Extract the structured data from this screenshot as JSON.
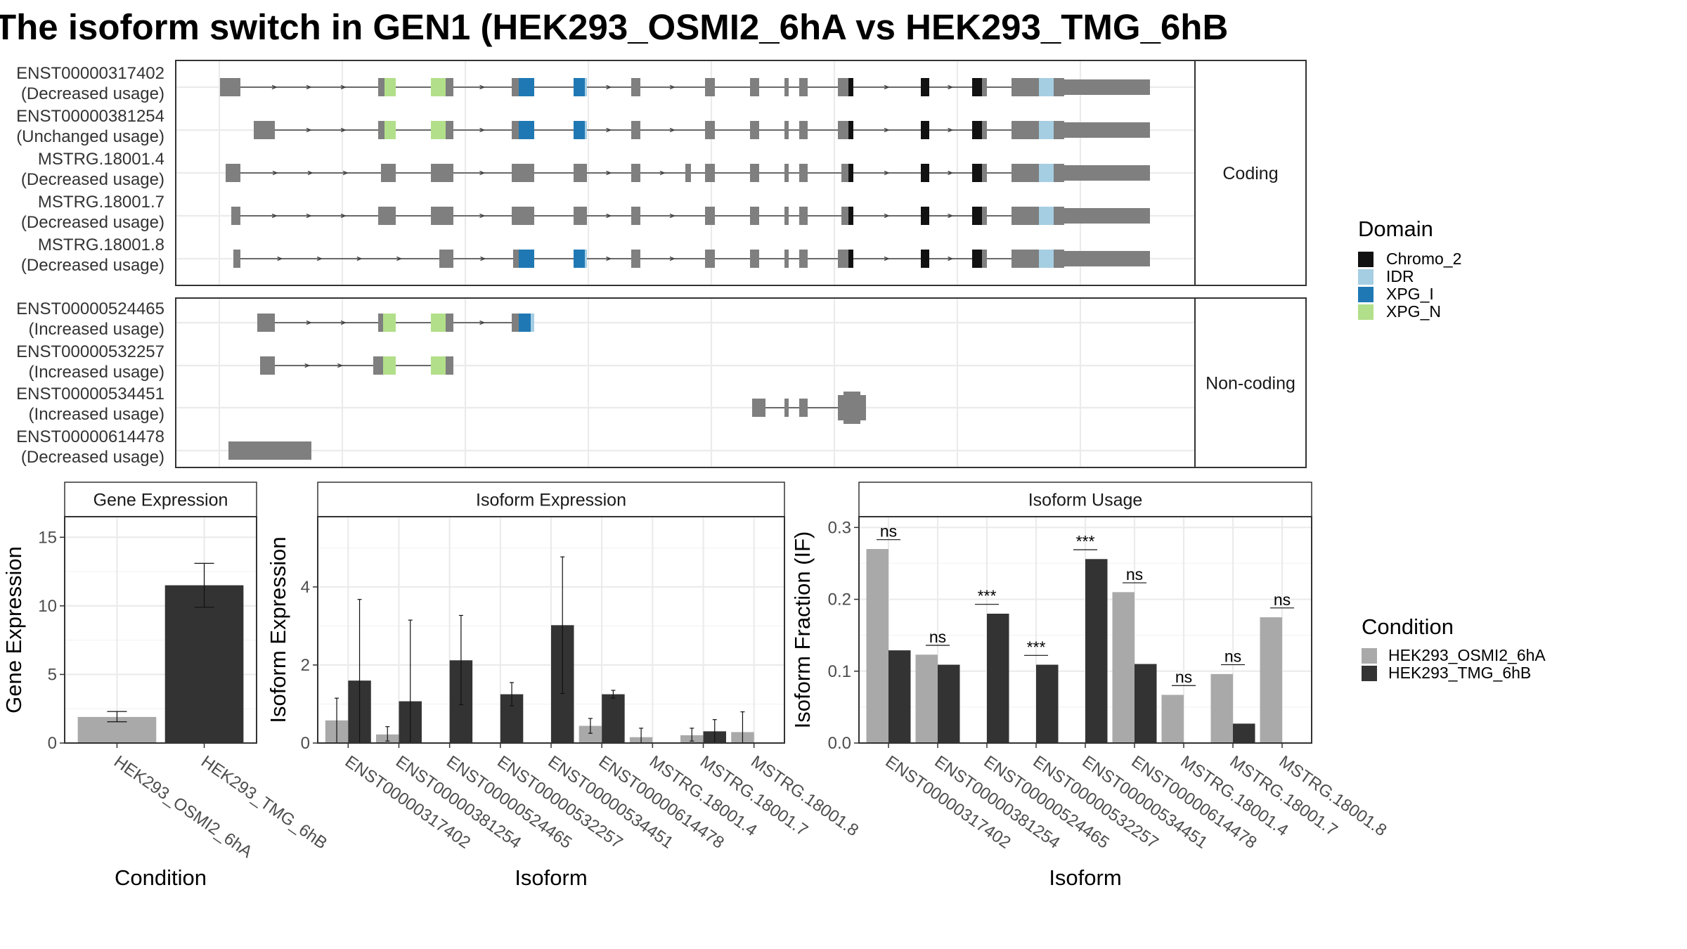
{
  "title": "The isoform switch in GEN1 (HEK293_OSMI2_6hA vs HEK293_TMG_6hB",
  "colors": {
    "exon": "#7f7f7f",
    "intron": "#3f3f3f",
    "Chromo_2": "#111111",
    "IDR": "#a6cee3",
    "XPG_I": "#1f78b4",
    "XPG_N": "#b2df8a",
    "cond_a": "#a9a9a9",
    "cond_b": "#333333"
  },
  "transcript_panels": [
    {
      "strip": "Coding",
      "isoforms": [
        {
          "id": "ENST00000317402",
          "usage": "(Decreased usage)"
        },
        {
          "id": "ENST00000381254",
          "usage": "(Unchanged usage)"
        },
        {
          "id": "MSTRG.18001.4",
          "usage": "(Decreased usage)"
        },
        {
          "id": "MSTRG.18001.7",
          "usage": "(Decreased usage)"
        },
        {
          "id": "MSTRG.18001.8",
          "usage": "(Decreased usage)"
        }
      ]
    },
    {
      "strip": "Non-coding",
      "isoforms": [
        {
          "id": "ENST00000524465",
          "usage": "(Increased usage)"
        },
        {
          "id": "ENST00000532257",
          "usage": "(Increased usage)"
        },
        {
          "id": "ENST00000534451",
          "usage": "(Increased usage)"
        },
        {
          "id": "ENST00000614478",
          "usage": "(Decreased usage)"
        }
      ]
    }
  ],
  "domain_legend": {
    "title": "Domain",
    "items": [
      {
        "name": "Chromo_2",
        "color": "#111111"
      },
      {
        "name": "IDR",
        "color": "#a6cee3"
      },
      {
        "name": "XPG_I",
        "color": "#1f78b4"
      },
      {
        "name": "XPG_N",
        "color": "#b2df8a"
      }
    ]
  },
  "condition_legend": {
    "title": "Condition",
    "items": [
      {
        "name": "HEK293_OSMI2_6hA",
        "color": "#a9a9a9"
      },
      {
        "name": "HEK293_TMG_6hB",
        "color": "#333333"
      }
    ]
  },
  "chart_data": [
    {
      "type": "bar",
      "title": "Gene Expression",
      "xlabel": "Condition",
      "ylabel": "Gene Expression",
      "ylim": [
        0,
        16.5
      ],
      "yticks": [
        0,
        5,
        10,
        15
      ],
      "categories": [
        "HEK293_OSMI2_6hA",
        "HEK293_TMG_6hB"
      ],
      "values": [
        1.9,
        11.5
      ],
      "errors": [
        [
          1.55,
          2.3
        ],
        [
          9.9,
          13.1
        ]
      ],
      "colors": [
        "#a9a9a9",
        "#333333"
      ]
    },
    {
      "type": "bar",
      "title": "Isoform Expression",
      "xlabel": "Isoform",
      "ylabel": "Isoform Expression",
      "ylim": [
        0,
        5.8
      ],
      "yticks": [
        0,
        2,
        4
      ],
      "categories": [
        "ENST00000317402",
        "ENST00000381254",
        "ENST00000524465",
        "ENST00000532257",
        "ENST00000534451",
        "ENST00000614478",
        "MSTRG.18001.4",
        "MSTRG.18001.7",
        "MSTRG.18001.8"
      ],
      "series": [
        {
          "name": "HEK293_OSMI2_6hA",
          "values": [
            0.58,
            0.22,
            0.0,
            0.0,
            0.0,
            0.44,
            0.15,
            0.2,
            0.28
          ],
          "errors": [
            [
              0.0,
              1.15
            ],
            [
              0.05,
              0.42
            ],
            [
              0,
              0
            ],
            [
              0,
              0
            ],
            [
              0,
              0
            ],
            [
              0.25,
              0.63
            ],
            [
              0.0,
              0.38
            ],
            [
              0.05,
              0.38
            ],
            [
              0.0,
              0.8
            ]
          ]
        },
        {
          "name": "HEK293_TMG_6hB",
          "values": [
            1.6,
            1.07,
            2.12,
            1.25,
            3.02,
            1.25,
            0.0,
            0.3,
            0.0
          ],
          "errors": [
            [
              0.0,
              3.68
            ],
            [
              0.0,
              3.15
            ],
            [
              0.98,
              3.27
            ],
            [
              0.95,
              1.55
            ],
            [
              1.27,
              4.77
            ],
            [
              1.15,
              1.35
            ],
            [
              0,
              0
            ],
            [
              0.0,
              0.6
            ],
            [
              0,
              0
            ]
          ]
        }
      ]
    },
    {
      "type": "bar",
      "title": "Isoform Usage",
      "xlabel": "Isoform",
      "ylabel": "Isoform Fraction (IF)",
      "ylim": [
        0,
        0.315
      ],
      "yticks": [
        0.0,
        0.1,
        0.2,
        0.3
      ],
      "ytick_labels": [
        "0.0",
        "0.1",
        "0.2",
        "0.3"
      ],
      "categories": [
        "ENST00000317402",
        "ENST00000381254",
        "ENST00000524465",
        "ENST00000532257",
        "ENST00000534451",
        "ENST00000614478",
        "MSTRG.18001.4",
        "MSTRG.18001.7",
        "MSTRG.18001.8"
      ],
      "series": [
        {
          "name": "HEK293_OSMI2_6hA",
          "values": [
            0.27,
            0.123,
            0.0,
            0.0,
            0.0,
            0.21,
            0.067,
            0.096,
            0.175
          ]
        },
        {
          "name": "HEK293_TMG_6hB",
          "values": [
            0.129,
            0.109,
            0.18,
            0.109,
            0.256,
            0.11,
            0.0,
            0.027,
            0.0
          ]
        }
      ],
      "significance": [
        "ns",
        "ns",
        "***",
        "***",
        "***",
        "ns",
        "ns",
        "ns",
        "ns"
      ],
      "sig_y": [
        0.283,
        0.136,
        0.193,
        0.122,
        0.269,
        0.223,
        0.08,
        0.109,
        0.188
      ]
    }
  ]
}
